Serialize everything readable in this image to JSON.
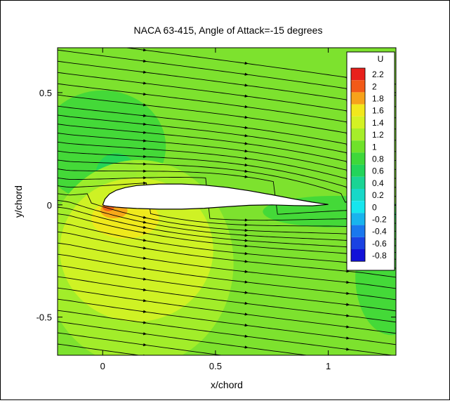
{
  "chart_data": {
    "type": "heatmap",
    "title": "NACA 63-415, Angle of Attack=-15 degrees",
    "xlabel": "x/chord",
    "ylabel": "y/chord",
    "xlim": [
      -0.2,
      1.3
    ],
    "ylim": [
      -0.67,
      0.7
    ],
    "xticks": [
      0,
      0.5,
      1
    ],
    "xtick_labels": [
      "0",
      "0.5",
      "1"
    ],
    "yticks": [
      0.5,
      0,
      -0.5
    ],
    "ytick_labels": [
      "0.5",
      "0",
      "-0.5"
    ],
    "grid": false,
    "legend": {
      "title": "U",
      "placement": "top-right",
      "levels": [
        2.2,
        2,
        1.8,
        1.6,
        1.4,
        1.2,
        1,
        0.8,
        0.6,
        0.4,
        0.2,
        0,
        -0.2,
        -0.4,
        -0.6,
        -0.8
      ],
      "level_labels": [
        "2.2",
        "2",
        "1.8",
        "1.6",
        "1.4",
        "1.2",
        "1",
        "0.8",
        "0.6",
        "0.4",
        "0.2",
        "0",
        "-0.2",
        "-0.4",
        "-0.6",
        "-0.8"
      ],
      "colors": [
        "#e8201c",
        "#f25a18",
        "#f7a21a",
        "#f2e81c",
        "#d4f224",
        "#a6ee2a",
        "#6fe22a",
        "#3ed83a",
        "#22d45a",
        "#1ad494",
        "#18d8c8",
        "#16e6ee",
        "#18b4ee",
        "#1a78ee",
        "#1a42e2",
        "#1212d8"
      ]
    },
    "background_color": "#7de22e",
    "streamline_color": "#000000",
    "airfoil": {
      "upper": [
        [
          0,
          0
        ],
        [
          0.01,
          0.026
        ],
        [
          0.03,
          0.048
        ],
        [
          0.06,
          0.065
        ],
        [
          0.1,
          0.077
        ],
        [
          0.15,
          0.086
        ],
        [
          0.25,
          0.093
        ],
        [
          0.35,
          0.093
        ],
        [
          0.45,
          0.088
        ],
        [
          0.55,
          0.078
        ],
        [
          0.65,
          0.063
        ],
        [
          0.75,
          0.045
        ],
        [
          0.85,
          0.026
        ],
        [
          0.93,
          0.012
        ],
        [
          1,
          0.002
        ]
      ],
      "lower": [
        [
          1,
          0.002
        ],
        [
          0.93,
          -0.004
        ],
        [
          0.85,
          -0.003
        ],
        [
          0.75,
          0.0
        ],
        [
          0.65,
          -0.002
        ],
        [
          0.55,
          -0.008
        ],
        [
          0.45,
          -0.015
        ],
        [
          0.35,
          -0.019
        ],
        [
          0.25,
          -0.019
        ],
        [
          0.15,
          -0.016
        ],
        [
          0.1,
          -0.013
        ],
        [
          0.06,
          -0.01
        ],
        [
          0.03,
          -0.007
        ],
        [
          0.01,
          -0.004
        ],
        [
          0,
          0
        ]
      ]
    },
    "contour_regions": [
      {
        "value": 0.8,
        "cx": 0.0,
        "cy": 0.26,
        "rx": 0.28,
        "ry": 0.25
      },
      {
        "value": 0.6,
        "cx": 0.06,
        "cy": 0.14,
        "rx": 0.09,
        "ry": 0.09
      },
      {
        "value": 0.2,
        "cx": 0.005,
        "cy": 0.03,
        "rx": 0.02,
        "ry": 0.04
      },
      {
        "value": 1.2,
        "cx": 0.16,
        "cy": -0.26,
        "rx": 0.42,
        "ry": 0.46
      },
      {
        "value": 1.4,
        "cx": 0.15,
        "cy": -0.2,
        "rx": 0.34,
        "ry": 0.32
      },
      {
        "value": 1.6,
        "cx": 0.1,
        "cy": -0.06,
        "rx": 0.15,
        "ry": 0.09
      },
      {
        "value": 1.8,
        "cx": 0.05,
        "cy": -0.025,
        "rx": 0.06,
        "ry": 0.035
      },
      {
        "value": 2.0,
        "cx": 0.025,
        "cy": -0.012,
        "rx": 0.025,
        "ry": 0.016
      },
      {
        "value": 0.8,
        "cx": 1.03,
        "cy": -0.03,
        "rx": 0.32,
        "ry": 0.07
      },
      {
        "value": 0.6,
        "cx": 1.25,
        "cy": -0.07,
        "rx": 0.14,
        "ry": 0.04
      },
      {
        "value": 0.8,
        "cx": 1.28,
        "cy": -0.32,
        "rx": 0.16,
        "ry": 0.26
      }
    ],
    "streamlines": {
      "y0": [
        0.74,
        0.69,
        0.64,
        0.59,
        0.54,
        0.49,
        0.44,
        0.4,
        0.36,
        0.32,
        0.28,
        0.24,
        0.2,
        0.16,
        0.12,
        0.085,
        0.05,
        0.02,
        -0.01,
        -0.04,
        -0.08,
        -0.12,
        -0.17,
        -0.22,
        -0.27,
        -0.32,
        -0.37,
        -0.42,
        -0.47,
        -0.52,
        -0.57,
        -0.62
      ],
      "slope": -0.27
    }
  }
}
